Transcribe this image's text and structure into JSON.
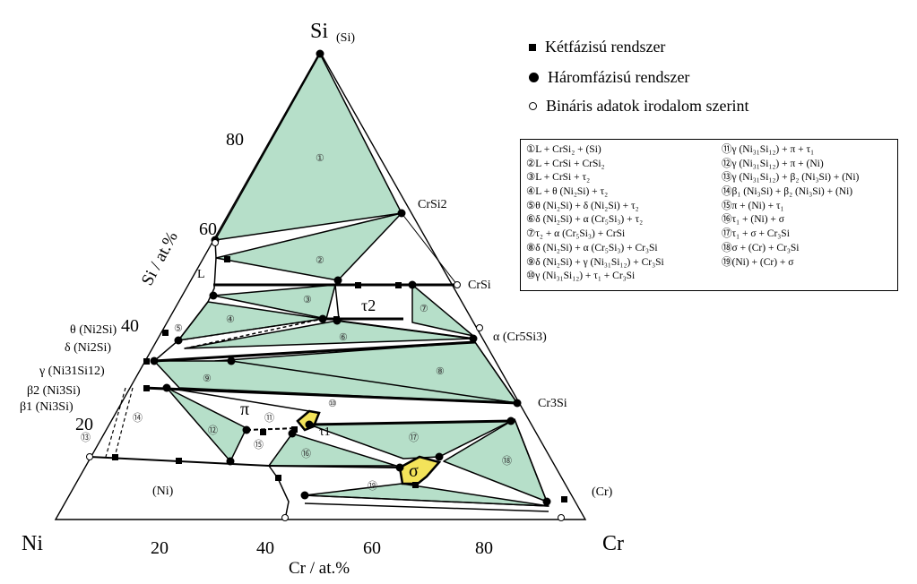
{
  "corners": {
    "top": "Si",
    "left": "Ni",
    "right": "Cr"
  },
  "axes": {
    "left": "Si / at.%",
    "bottom": "Cr / at.%"
  },
  "left_ticks": [
    "80",
    "60",
    "40",
    "20"
  ],
  "bottom_ticks": [
    "20",
    "40",
    "60",
    "80"
  ],
  "legend": [
    {
      "symbol": "filled-square",
      "label": "Kétfázisú rendszer"
    },
    {
      "symbol": "filled-circle",
      "label": "Háromfázisú rendszer"
    },
    {
      "symbol": "open-circle",
      "label": "Bináris adatok irodalom szerint"
    }
  ],
  "phase_labels": {
    "si_solid": "(Si)",
    "crsi2": "CrSi2",
    "crsi": "CrSi",
    "cr5si3": "α (Cr5Si3)",
    "cr3si": "Cr3Si",
    "cr": "(Cr)",
    "ni": "(Ni)",
    "liquid": "L",
    "tau2": "τ2",
    "tau1": "τ1",
    "pi": "π",
    "sigma": "σ",
    "theta": "θ (Ni2Si)",
    "delta": "δ (Ni2Si)",
    "gamma": "γ (Ni31Si12)",
    "beta2": "β2 (Ni3Si)",
    "beta1": "β1 (Ni3Si)"
  },
  "region_numbers": [
    "①",
    "②",
    "③",
    "④",
    "⑤",
    "⑥",
    "⑦",
    "⑧",
    "⑨",
    "⑩",
    "⑪",
    "⑫",
    "⑬",
    "⑭",
    "⑮",
    "⑯",
    "⑰",
    "⑱",
    "⑲"
  ],
  "regions": [
    "①L + CrSi₂ + (Si)",
    "②L + CrSi + CrSi₂",
    "③L + CrSi + τ₂",
    "④L + θ (Ni₂Si) + τ₂",
    "⑤θ (Ni₂Si) + δ (Ni₂Si) + τ₂",
    "⑥δ (Ni₂Si) + α (Cr₅Si₃) + τ₂",
    "⑦τ₂ + α (Cr₅Si₃) + CrSi",
    "⑧δ (Ni₂Si) + α (Cr₅Si₃) + Cr₃Si",
    "⑨δ (Ni₂Si) + γ (Ni₃₁Si₁₂) + Cr₃Si",
    "⑩γ (Ni₃₁Si₁₂) + τ₁ + Cr₃Si",
    "⑪γ (Ni₃₁Si₁₂) + π + τ₁",
    "⑫γ (Ni₃₁Si₁₂) + π + (Ni)",
    "⑬γ (Ni₃₁Si₁₂) + β₂ (Ni₃Si) + (Ni)",
    "⑭β₁ (Ni₃Si) + β₂ (Ni₃Si) + (Ni)",
    "⑮π + (Ni) + τ₁",
    "⑯τ₁ + (Ni) + σ",
    "⑰τ₁ + σ + Cr₃Si",
    "⑱σ + (Cr) + Cr₃Si",
    "⑲(Ni) + (Cr) + σ"
  ],
  "colors": {
    "region_fill": "#b6dfc9",
    "sigma_fill": "#f3e35a",
    "line": "#000000"
  }
}
